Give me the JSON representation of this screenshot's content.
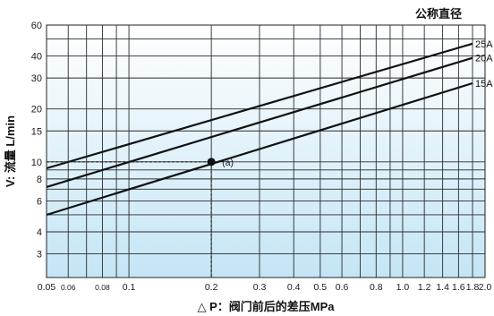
{
  "chart_data": {
    "type": "line",
    "title": "公称直径",
    "xlabel": "△ P：阀门前后的差压MPa",
    "ylabel": "V: 流量 L/min",
    "xscale": "log",
    "yscale": "log",
    "xlim": [
      0.05,
      2.0
    ],
    "ylim": [
      2.2,
      60
    ],
    "grid": true,
    "background": "gradient from white (top) to light blue (bottom)",
    "x_ticks": [
      {
        "value": 0.05,
        "label": "0.05"
      },
      {
        "value": 0.06,
        "label": "0.06"
      },
      {
        "value": 0.07,
        "label": ""
      },
      {
        "value": 0.08,
        "label": "0.08"
      },
      {
        "value": 0.09,
        "label": ""
      },
      {
        "value": 0.1,
        "label": "0.1"
      },
      {
        "value": 0.2,
        "label": "0.2"
      },
      {
        "value": 0.3,
        "label": "0.3"
      },
      {
        "value": 0.4,
        "label": "0.4"
      },
      {
        "value": 0.5,
        "label": "0.5"
      },
      {
        "value": 0.6,
        "label": "0.6"
      },
      {
        "value": 0.7,
        "label": ""
      },
      {
        "value": 0.8,
        "label": "0.8"
      },
      {
        "value": 0.9,
        "label": ""
      },
      {
        "value": 1.0,
        "label": "1.0"
      },
      {
        "value": 1.2,
        "label": "1.2"
      },
      {
        "value": 1.4,
        "label": "1.4"
      },
      {
        "value": 1.6,
        "label": "1.6"
      },
      {
        "value": 1.8,
        "label": "1.8"
      },
      {
        "value": 2.0,
        "label": "2.0"
      }
    ],
    "y_ticks": [
      {
        "value": 3,
        "label": "3"
      },
      {
        "value": 4,
        "label": "4"
      },
      {
        "value": 5,
        "label": ""
      },
      {
        "value": 6,
        "label": "6"
      },
      {
        "value": 7,
        "label": ""
      },
      {
        "value": 8,
        "label": "8"
      },
      {
        "value": 9,
        "label": ""
      },
      {
        "value": 10,
        "label": "10"
      },
      {
        "value": 15,
        "label": "15"
      },
      {
        "value": 20,
        "label": "20"
      },
      {
        "value": 30,
        "label": "30"
      },
      {
        "value": 40,
        "label": "40"
      },
      {
        "value": 50,
        "label": ""
      },
      {
        "value": 60,
        "label": "60"
      }
    ],
    "series": [
      {
        "name": "25A",
        "x": [
          0.05,
          1.8
        ],
        "y": [
          9.2,
          47
        ]
      },
      {
        "name": "20A",
        "x": [
          0.05,
          1.8
        ],
        "y": [
          7.2,
          39
        ]
      },
      {
        "name": "15A",
        "x": [
          0.05,
          1.8
        ],
        "y": [
          5.0,
          28
        ]
      }
    ],
    "annotation": {
      "label": "(a)",
      "x": 0.2,
      "y": 10,
      "dashed_guides": true
    }
  }
}
